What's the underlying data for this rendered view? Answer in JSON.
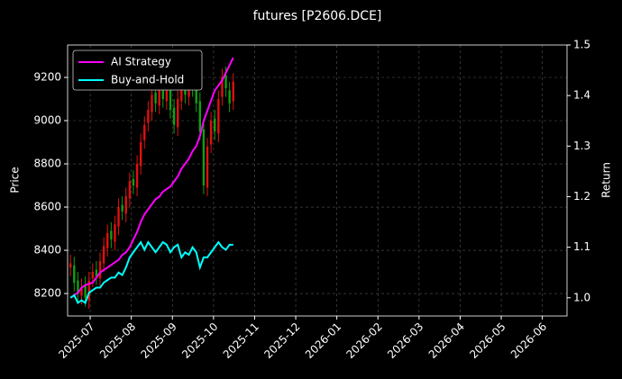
{
  "chart_data": {
    "type": "candlestick",
    "title": "futures [P2606.DCE]",
    "ylabel": "Price",
    "y2label": "Return",
    "x": [
      6.52,
      6.61,
      6.7,
      6.79,
      6.88,
      6.97,
      7.06,
      7.15,
      7.24,
      7.33,
      7.42,
      7.51,
      7.6,
      7.69,
      7.78,
      7.87,
      7.96,
      8.05,
      8.14,
      8.23,
      8.32,
      8.41,
      8.5,
      8.59,
      8.68,
      8.77,
      8.86,
      8.95,
      9.04,
      9.13,
      9.22,
      9.31,
      9.4,
      9.49,
      9.58,
      9.67,
      9.76,
      9.85,
      9.94,
      10.03,
      10.12,
      10.21,
      10.3,
      10.39,
      10.48
    ],
    "open": [
      8320,
      8330,
      8260,
      8190,
      8240,
      8170,
      8270,
      8310,
      8270,
      8340,
      8410,
      8490,
      8440,
      8510,
      8610,
      8570,
      8640,
      8730,
      8690,
      8790,
      8910,
      8990,
      9040,
      9130,
      9070,
      9160,
      9090,
      9190,
      9060,
      8970,
      9090,
      9190,
      9110,
      9210,
      9160,
      9090,
      8960,
      8690,
      8890,
      9010,
      8940,
      9110,
      9210,
      9140,
      9090
    ],
    "high": [
      8380,
      8370,
      8300,
      8270,
      8280,
      8300,
      8340,
      8350,
      8390,
      8460,
      8520,
      8530,
      8560,
      8640,
      8650,
      8690,
      8760,
      8770,
      8840,
      8940,
      9020,
      9090,
      9160,
      9170,
      9190,
      9200,
      9220,
      9230,
      9100,
      9140,
      9220,
      9230,
      9240,
      9250,
      9200,
      9130,
      9000,
      8920,
      9040,
      9050,
      9140,
      9240,
      9250,
      9180,
      9220
    ],
    "low": [
      8280,
      8210,
      8160,
      8150,
      8140,
      8130,
      8230,
      8240,
      8230,
      8300,
      8370,
      8410,
      8400,
      8470,
      8540,
      8530,
      8600,
      8660,
      8650,
      8750,
      8870,
      8950,
      9000,
      9040,
      9030,
      9060,
      9050,
      9010,
      8940,
      8930,
      9050,
      9080,
      9070,
      9110,
      9040,
      8910,
      8660,
      8650,
      8850,
      8910,
      8900,
      9070,
      9110,
      9040,
      9050
    ],
    "close": [
      8340,
      8250,
      8200,
      8230,
      8180,
      8260,
      8300,
      8280,
      8350,
      8420,
      8480,
      8450,
      8520,
      8600,
      8580,
      8650,
      8720,
      8700,
      8800,
      8900,
      8980,
      9050,
      9120,
      9080,
      9150,
      9100,
      9180,
      9050,
      8980,
      9100,
      9180,
      9120,
      9200,
      9150,
      9080,
      8950,
      8700,
      8880,
      9000,
      8950,
      9100,
      9200,
      9150,
      9080,
      9180
    ],
    "up_color": "#e01010",
    "down_color": "#10a010",
    "series": [
      {
        "name": "AI Strategy",
        "color": "#ff00ff",
        "axis": "y2",
        "values": [
          1.0,
          1.005,
          1.01,
          1.02,
          1.025,
          1.028,
          1.03,
          1.04,
          1.05,
          1.055,
          1.06,
          1.065,
          1.07,
          1.075,
          1.085,
          1.09,
          1.1,
          1.115,
          1.13,
          1.15,
          1.165,
          1.175,
          1.185,
          1.195,
          1.2,
          1.21,
          1.215,
          1.22,
          1.23,
          1.24,
          1.255,
          1.265,
          1.275,
          1.29,
          1.3,
          1.32,
          1.35,
          1.37,
          1.39,
          1.41,
          1.42,
          1.43,
          1.445,
          1.46,
          1.475
        ]
      },
      {
        "name": "Buy-and-Hold",
        "color": "#00ffff",
        "axis": "y2",
        "values": [
          1.0,
          1.005,
          0.99,
          0.995,
          0.99,
          1.01,
          1.015,
          1.02,
          1.02,
          1.03,
          1.035,
          1.04,
          1.04,
          1.05,
          1.045,
          1.06,
          1.08,
          1.09,
          1.1,
          1.11,
          1.095,
          1.11,
          1.1,
          1.09,
          1.1,
          1.11,
          1.105,
          1.09,
          1.1,
          1.105,
          1.08,
          1.09,
          1.085,
          1.1,
          1.09,
          1.06,
          1.08,
          1.08,
          1.09,
          1.1,
          1.11,
          1.1,
          1.095,
          1.105,
          1.105
        ]
      }
    ],
    "xlim": [
      6.45,
      18.6
    ],
    "xticks": [
      {
        "value": 7,
        "label": "2025-07"
      },
      {
        "value": 8,
        "label": "2025-08"
      },
      {
        "value": 9,
        "label": "2025-09"
      },
      {
        "value": 10,
        "label": "2025-10"
      },
      {
        "value": 11,
        "label": "2025-11"
      },
      {
        "value": 12,
        "label": "2025-12"
      },
      {
        "value": 13,
        "label": "2026-01"
      },
      {
        "value": 14,
        "label": "2026-02"
      },
      {
        "value": 15,
        "label": "2026-03"
      },
      {
        "value": 16,
        "label": "2026-04"
      },
      {
        "value": 17,
        "label": "2026-05"
      },
      {
        "value": 18,
        "label": "2026-06"
      }
    ],
    "ylim": [
      8096,
      9350
    ],
    "yticks": [
      8200,
      8400,
      8600,
      8800,
      9000,
      9200
    ],
    "y2lim": [
      0.964,
      1.5
    ],
    "y2ticks": [
      {
        "value": 1,
        "label": "1.0"
      },
      1.1,
      1.2,
      1.3,
      1.4,
      1.5
    ],
    "grid": true,
    "legend": "upper left"
  }
}
